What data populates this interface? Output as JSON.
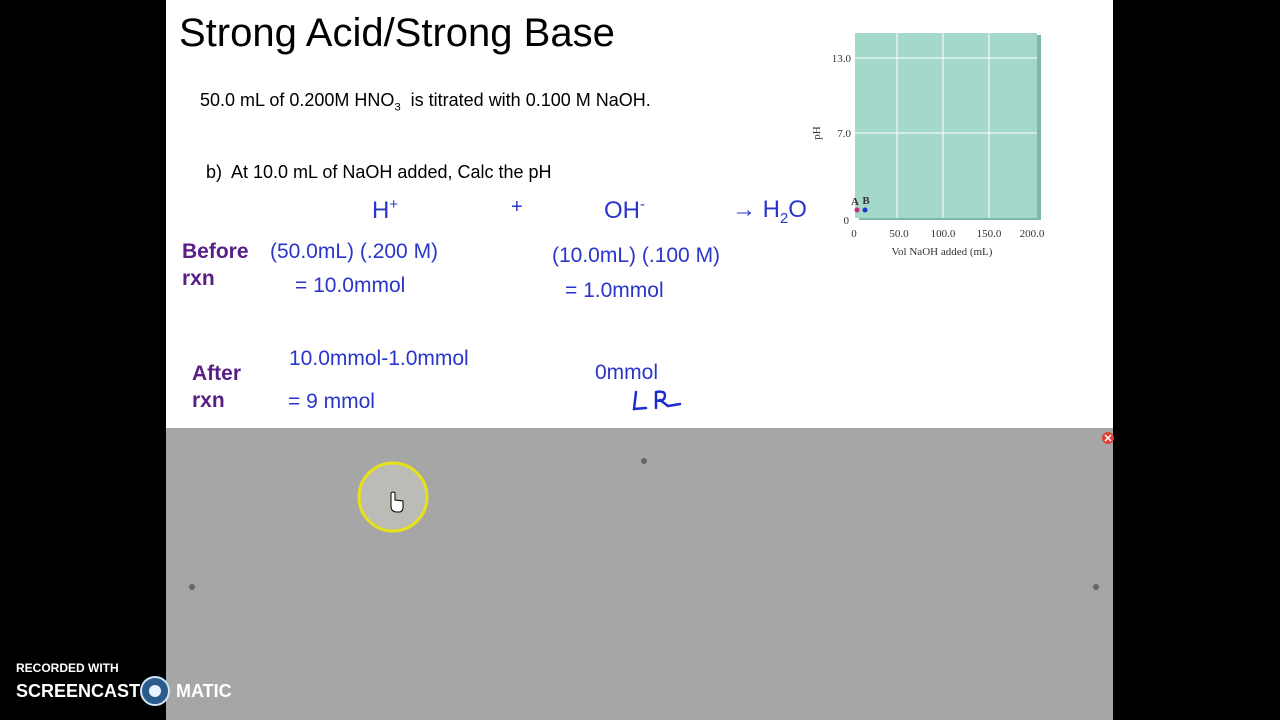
{
  "slide": {
    "title": "Strong Acid/Strong Base",
    "problem": {
      "text": "50.0 mL of 0.200M HNO",
      "subscript": "3",
      "rest": "  is titrated with 0.100 M NaOH."
    },
    "question": "b)  At 10.0 mL of NaOH added, Calc the pH",
    "reaction": {
      "acid": "H",
      "acid_charge": "+",
      "plus": "+",
      "base": "OH",
      "base_charge": "-",
      "arrow_product": "→ H",
      "product_subscript": "2",
      "product_end": "O"
    },
    "before": {
      "label": [
        "Before",
        "rxn"
      ],
      "acid_calc": "(50.0mL) (.200 M)",
      "acid_result": "= 10.0mmol",
      "base_calc": "(10.0mL) (.100 M)",
      "base_result": "= 1.0mmol"
    },
    "after": {
      "label": [
        "After",
        "rxn"
      ],
      "acid_calc": "10.0mmol-1.0mmol",
      "acid_result": "= 9 mmol",
      "base_result": "0mmol",
      "annotation": "LR"
    },
    "inset": {
      "y_label": "pH",
      "y_ticks": [
        "13.0",
        "7.0",
        "0"
      ],
      "x_ticks": [
        "0",
        "50.0",
        "100.0",
        "150.0",
        "200.0"
      ],
      "x_label": "Vol NaOH added (mL)",
      "points": [
        "A",
        "B"
      ]
    }
  },
  "watermark": {
    "line1": "RECORDED WITH",
    "brand_left": "SCREENCAST",
    "brand_right": "MATIC"
  }
}
